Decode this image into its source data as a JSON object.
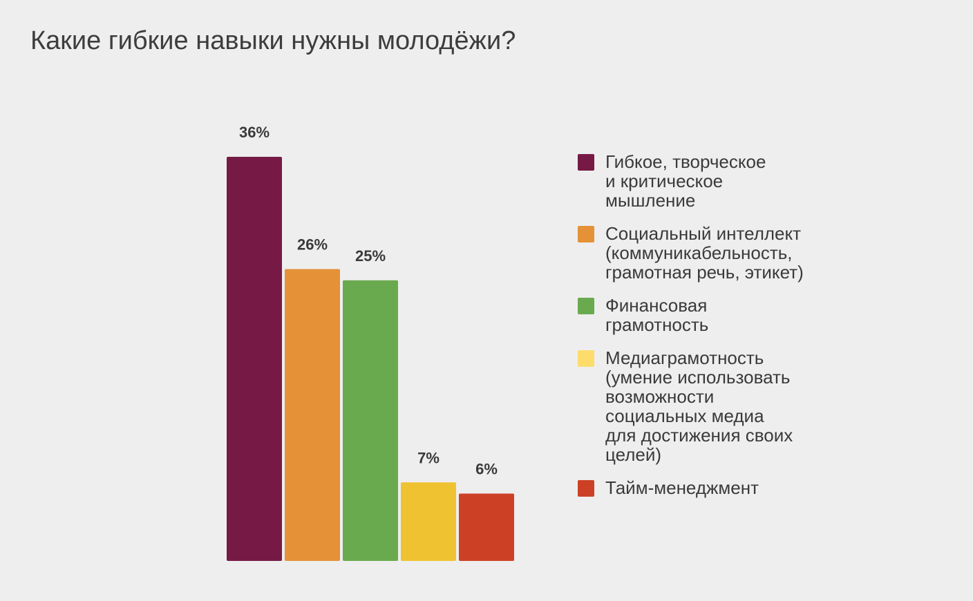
{
  "title": "Какие гибкие навыки нужны молодёжи?",
  "chart_data": {
    "type": "bar",
    "categories": [
      "Гибкое, творческое\nи критическое\nмышление",
      "Социальный интеллект\n(коммуникабельность,\nграмотная речь, этикет)",
      "Финансовая\nграмотность",
      "Медиаграмотность\n(умение использовать\nвозможности\nсоциальных медиа\nдля достижения своих\nцелей)",
      "Тайм-менеджмент"
    ],
    "values": [
      36,
      26,
      25,
      7,
      6
    ],
    "value_labels": [
      "36%",
      "26%",
      "25%",
      "7%",
      "6%"
    ],
    "colors": [
      "#761a45",
      "#e59138",
      "#6aaa4e",
      "#efc232",
      "#cc4125"
    ],
    "legend_colors": [
      "#761a45",
      "#e59138",
      "#6aaa4e",
      "#fedc6c",
      "#cc4125"
    ],
    "legend_position": "right",
    "ylim": [
      0,
      36
    ],
    "grid": false
  }
}
